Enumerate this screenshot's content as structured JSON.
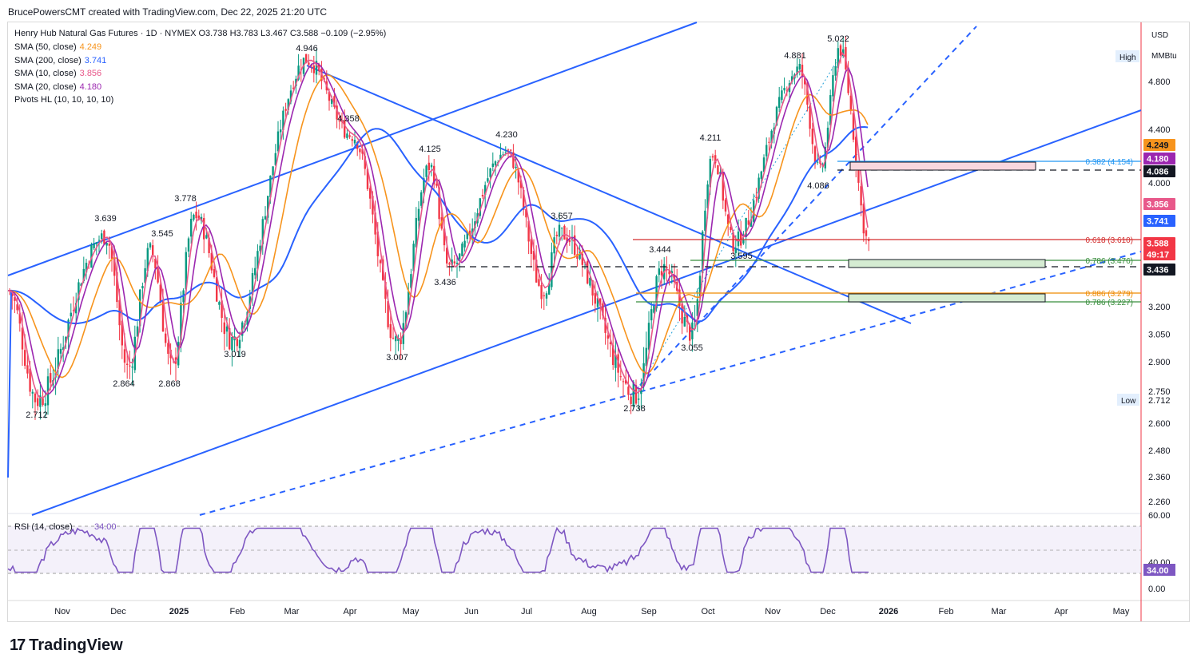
{
  "header": {
    "attribution": "BrucePowersCMT created with TradingView.com, Dec 22, 2025 21:20 UTC"
  },
  "legend": {
    "title_line": "Henry Hub Natural Gas Futures · 1D · NYMEX  O3.738  H3.783  L3.467  C3.588  −0.109 (−2.95%)",
    "studies": [
      {
        "label": "SMA (50, close)",
        "value": "4.249",
        "color": "#f7941d"
      },
      {
        "label": "SMA (200, close)",
        "value": "3.741",
        "color": "#2962ff"
      },
      {
        "label": "SMA (10, close)",
        "value": "3.856",
        "color": "#e8588a"
      },
      {
        "label": "SMA (20, close)",
        "value": "4.180",
        "color": "#9c27b0"
      },
      {
        "label": "Pivots HL (10, 10, 10, 10)",
        "value": "",
        "color": "#131722"
      }
    ]
  },
  "axis": {
    "currency": "USD",
    "unit": "MMBtu",
    "high_label": "High",
    "low_label": "Low",
    "low_value": "2.712"
  },
  "colors": {
    "up": "#089981",
    "down": "#f23645",
    "blue": "#2962ff",
    "fib_red": "#d32f2f",
    "fib_green": "#388e3c",
    "fib_orange": "#ef8a00",
    "rsi": "#7e57c2"
  },
  "chart_data": {
    "type": "candlestick",
    "title": "Henry Hub Natural Gas Futures · 1D · NYMEX",
    "y_ticks": [
      4.8,
      4.4,
      4.0,
      3.2,
      3.05,
      2.9,
      2.75,
      2.6,
      2.48,
      2.36,
      2.26
    ],
    "x_labels": [
      "Nov",
      "Dec",
      "2025",
      "Feb",
      "Mar",
      "Apr",
      "May",
      "Jun",
      "Jul",
      "Aug",
      "Sep",
      "Oct",
      "Nov",
      "Dec",
      "2026",
      "Feb",
      "Mar",
      "Apr",
      "May"
    ],
    "ohlc_last": {
      "open": 3.738,
      "high": 3.783,
      "low": 3.467,
      "close": 3.588,
      "change": -0.109,
      "change_pct": -2.95
    },
    "price_badges": [
      {
        "value": "4.249",
        "color": "#f7941d",
        "text_color": "#131722"
      },
      {
        "value": "4.180",
        "color": "#9c27b0",
        "text_color": "#ffffff"
      },
      {
        "value": "4.086",
        "color": "#131722",
        "text_color": "#ffffff"
      },
      {
        "value": "3.856",
        "color": "#e8588a",
        "text_color": "#ffffff"
      },
      {
        "value": "3.741",
        "color": "#2962ff",
        "text_color": "#ffffff"
      },
      {
        "value": "3.588",
        "color": "#f23645",
        "text_color": "#ffffff"
      },
      {
        "value": "49:17",
        "color": "#f23645",
        "text_color": "#ffffff"
      },
      {
        "value": "3.436",
        "color": "#131722",
        "text_color": "#ffffff"
      }
    ],
    "pivot_labels": [
      {
        "text": "2.712",
        "date": "Oct 2024",
        "kind": "low"
      },
      {
        "text": "3.639",
        "date": "Nov 2024",
        "kind": "high"
      },
      {
        "text": "2.864",
        "date": "Dec 2024",
        "kind": "low"
      },
      {
        "text": "3.545",
        "date": "Dec 2024",
        "kind": "high"
      },
      {
        "text": "2.868",
        "date": "Jan 2025",
        "kind": "low"
      },
      {
        "text": "3.778",
        "date": "Jan 2025",
        "kind": "high"
      },
      {
        "text": "3.019",
        "date": "Feb 2025",
        "kind": "low"
      },
      {
        "text": "4.946",
        "date": "Mar 2025",
        "kind": "high"
      },
      {
        "text": "4.358",
        "date": "Apr 2025",
        "kind": "high"
      },
      {
        "text": "3.007",
        "date": "Apr 2025",
        "kind": "low"
      },
      {
        "text": "4.125",
        "date": "May 2025",
        "kind": "high"
      },
      {
        "text": "3.436",
        "date": "May 2025",
        "kind": "low"
      },
      {
        "text": "4.230",
        "date": "Jun 2025",
        "kind": "high"
      },
      {
        "text": "3.657",
        "date": "Jul 2025",
        "kind": "high"
      },
      {
        "text": "2.738",
        "date": "Aug 2025",
        "kind": "low"
      },
      {
        "text": "3.444",
        "date": "Sep 2025",
        "kind": "high"
      },
      {
        "text": "3.055",
        "date": "Sep 2025",
        "kind": "low"
      },
      {
        "text": "4.211",
        "date": "Oct 2025",
        "kind": "high"
      },
      {
        "text": "3.595",
        "date": "Oct 2025",
        "kind": "low"
      },
      {
        "text": "4.881",
        "date": "Nov 2025",
        "kind": "high"
      },
      {
        "text": "4.086",
        "date": "Nov 2025",
        "kind": "low"
      },
      {
        "text": "5.022",
        "date": "Dec 2025",
        "kind": "high"
      }
    ],
    "fib_levels": [
      {
        "label": "0.382 (4.154)",
        "value": 4.154,
        "color": "#2196f3"
      },
      {
        "label": "0.618 (3.610)",
        "value": 3.61,
        "color": "#d32f2f"
      },
      {
        "label": "0.786 (3.476)",
        "value": 3.476,
        "color": "#388e3c"
      },
      {
        "label": "0.886 (3.279)",
        "value": 3.279,
        "color": "#ef8a00"
      },
      {
        "label": "0.786 (3.227)",
        "value": 3.227,
        "color": "#388e3c"
      }
    ],
    "rsi": {
      "label": "RSI (14, close)",
      "value": "34.00",
      "ticks": [
        "60.00",
        "40.00",
        "0.00"
      ]
    }
  },
  "branding": {
    "logo_text": "TradingView"
  }
}
